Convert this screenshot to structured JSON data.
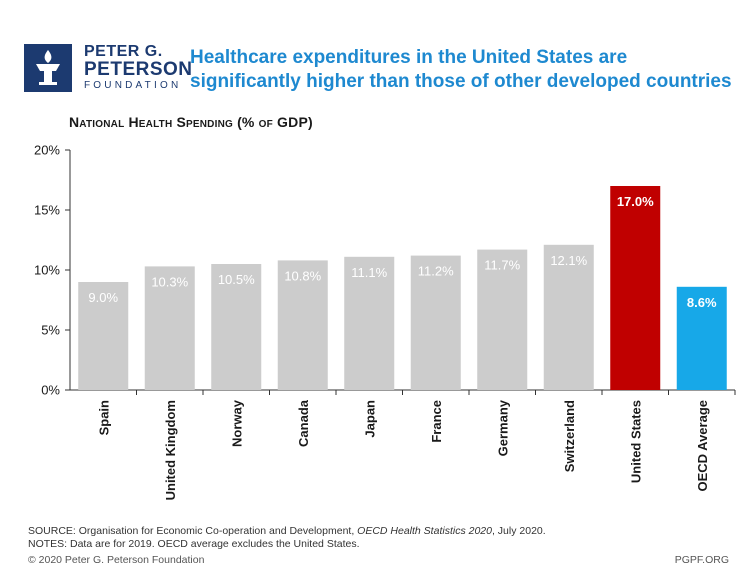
{
  "logo": {
    "line1": "PETER G.",
    "line2": "PETERSON",
    "line3": "FOUNDATION"
  },
  "headline": {
    "line1": "Healthcare expenditures in the United States are",
    "line2": "significantly higher than those of other developed countries"
  },
  "colors": {
    "default_bar": "#cccccc",
    "us_bar": "#c00000",
    "oecd_bar": "#17a8e8",
    "brand_navy": "#1c3a70",
    "headline_blue": "#1e89d0"
  },
  "chart_data": {
    "type": "bar",
    "title": "National Health Spending (% of GDP)",
    "categories": [
      "Spain",
      "United Kingdom",
      "Norway",
      "Canada",
      "Japan",
      "France",
      "Germany",
      "Switzerland",
      "United States",
      "OECD Average"
    ],
    "values": [
      9.0,
      10.3,
      10.5,
      10.8,
      11.1,
      11.2,
      11.7,
      12.1,
      17.0,
      8.6
    ],
    "data_labels": [
      "9.0%",
      "10.3%",
      "10.5%",
      "10.8%",
      "11.1%",
      "11.2%",
      "11.7%",
      "12.1%",
      "17.0%",
      "8.6%"
    ],
    "highlight": {
      "United States": "us_bar",
      "OECD Average": "oecd_bar"
    },
    "yticks": [
      "0%",
      "5%",
      "10%",
      "15%",
      "20%"
    ],
    "ylim": [
      0,
      20
    ],
    "grid": false,
    "legend": "none"
  },
  "footer": {
    "source_prefix": "SOURCE: Organisation for Economic Co-operation and Development, ",
    "source_title": "OECD Health Statistics 2020",
    "source_suffix": ", July 2020.",
    "notes": "NOTES: Data are for 2019. OECD average excludes the United States.",
    "copyright": "© 2020 Peter G. Peterson Foundation",
    "site": "PGPF.ORG"
  }
}
